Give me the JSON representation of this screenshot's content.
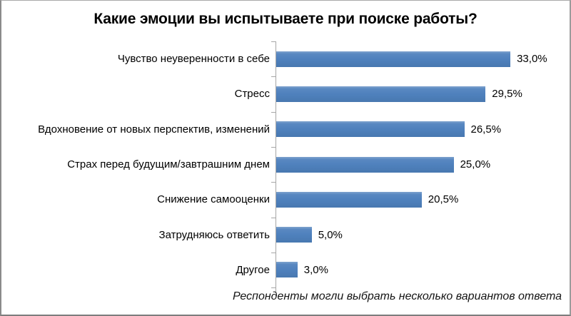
{
  "chart": {
    "title": "Какие эмоции вы испытываете при поиске работы?",
    "footnote": "Респонденты могли выбрать несколько вариантов ответа"
  },
  "chart_data": {
    "type": "bar",
    "orientation": "horizontal",
    "title": "Какие эмоции вы испытываете при поиске работы?",
    "categories": [
      "Чувство неуверенности в себе",
      "Стресс",
      "Вдохновение от новых перспектив, изменений",
      "Страх перед будущим/завтрашним днем",
      "Снижение самооценки",
      "Затрудняюсь ответить",
      "Другое"
    ],
    "values": [
      33.0,
      29.5,
      26.5,
      25.0,
      20.5,
      5.0,
      3.0
    ],
    "value_labels": [
      "33,0%",
      "29,5%",
      "26,5%",
      "25,0%",
      "20,5%",
      "5,0%",
      "3,0%"
    ],
    "xlabel": "",
    "ylabel": "",
    "xlim": [
      0,
      35
    ],
    "grid": false,
    "legend": false,
    "bar_color": "#4f81bd",
    "axis_color": "#a6a6a6",
    "annotation": "Респонденты могли выбрать несколько вариантов ответа"
  }
}
